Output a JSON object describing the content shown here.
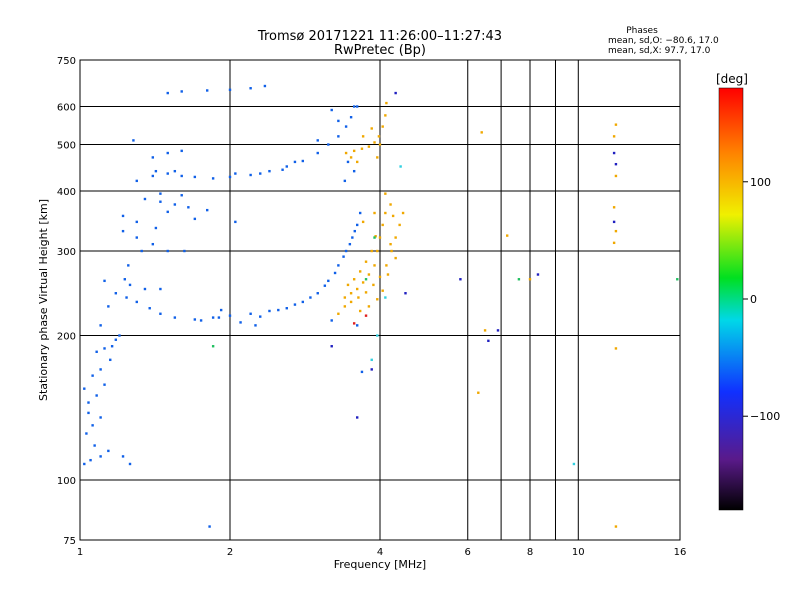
{
  "chart_data": {
    "type": "scatter",
    "title": "Tromsø 20171221 11:26:00–11:27:43",
    "subtitle": "RwPretec (Bp)",
    "xlabel": "Frequency [MHz]",
    "ylabel": "Stationary phase Virtual Height [km]",
    "x_scale": "log",
    "y_scale": "log",
    "xlim": [
      1,
      16
    ],
    "ylim": [
      75,
      750
    ],
    "x_ticks": [
      1,
      2,
      4,
      6,
      8,
      10,
      16
    ],
    "x_tick_labels": [
      "1",
      "2",
      "4",
      "6",
      "8",
      "10",
      "16"
    ],
    "x_gridlines": [
      2,
      4,
      6,
      7,
      8,
      9,
      10,
      16
    ],
    "y_ticks": [
      75,
      100,
      200,
      300,
      400,
      500,
      600,
      750
    ],
    "y_tick_labels": [
      "75",
      "100",
      "200",
      "300",
      "400",
      "500",
      "600",
      "750"
    ],
    "y_gridlines": [
      100,
      200,
      300,
      400,
      500,
      600
    ],
    "grid": true,
    "stats": {
      "title": "Phases",
      "line_o": "mean, sd,O: −80.6, 17.0",
      "line_x": "mean, sd,X:  97.7, 17.0"
    },
    "colorbar": {
      "label": "[deg]",
      "range": [
        -180,
        180
      ],
      "ticks": [
        100,
        0,
        -100
      ],
      "tick_labels": [
        "100",
        "0",
        "−100"
      ]
    },
    "series": [
      {
        "mode": "O",
        "color": "#1060e8",
        "points": [
          [
            1.02,
            108
          ],
          [
            1.05,
            110
          ],
          [
            1.1,
            112
          ],
          [
            1.14,
            115
          ],
          [
            1.03,
            125
          ],
          [
            1.06,
            130
          ],
          [
            1.1,
            135
          ],
          [
            1.04,
            145
          ],
          [
            1.08,
            150
          ],
          [
            1.12,
            158
          ],
          [
            1.06,
            165
          ],
          [
            1.1,
            170
          ],
          [
            1.15,
            178
          ],
          [
            1.12,
            188
          ],
          [
            1.18,
            196
          ],
          [
            1.2,
            200
          ],
          [
            1.1,
            210
          ],
          [
            1.14,
            230
          ],
          [
            1.18,
            245
          ],
          [
            1.24,
            240
          ],
          [
            1.3,
            235
          ],
          [
            1.38,
            228
          ],
          [
            1.45,
            222
          ],
          [
            1.55,
            218
          ],
          [
            1.7,
            216
          ],
          [
            1.85,
            218
          ],
          [
            2.0,
            220
          ],
          [
            2.2,
            222
          ],
          [
            2.4,
            225
          ],
          [
            2.6,
            228
          ],
          [
            2.8,
            235
          ],
          [
            3.0,
            245
          ],
          [
            3.15,
            260
          ],
          [
            3.3,
            280
          ],
          [
            3.42,
            300
          ],
          [
            3.52,
            320
          ],
          [
            3.6,
            340
          ],
          [
            3.65,
            360
          ],
          [
            1.22,
            330
          ],
          [
            1.3,
            320
          ],
          [
            1.4,
            310
          ],
          [
            1.5,
            300
          ],
          [
            1.22,
            355
          ],
          [
            1.3,
            345
          ],
          [
            1.42,
            335
          ],
          [
            1.35,
            385
          ],
          [
            1.45,
            380
          ],
          [
            1.55,
            375
          ],
          [
            1.65,
            370
          ],
          [
            1.8,
            365
          ],
          [
            1.3,
            420
          ],
          [
            1.4,
            430
          ],
          [
            1.5,
            435
          ],
          [
            1.6,
            430
          ],
          [
            1.7,
            428
          ],
          [
            1.85,
            425
          ],
          [
            2.0,
            428
          ],
          [
            2.2,
            432
          ],
          [
            2.4,
            440
          ],
          [
            2.6,
            450
          ],
          [
            2.8,
            462
          ],
          [
            3.0,
            480
          ],
          [
            3.15,
            500
          ],
          [
            3.3,
            520
          ],
          [
            3.42,
            545
          ],
          [
            3.5,
            570
          ],
          [
            3.55,
            600
          ],
          [
            1.4,
            470
          ],
          [
            1.5,
            480
          ],
          [
            1.6,
            485
          ],
          [
            1.28,
            510
          ],
          [
            1.5,
            640
          ],
          [
            1.6,
            645
          ],
          [
            1.8,
            648
          ],
          [
            2.0,
            650
          ],
          [
            2.2,
            655
          ],
          [
            2.35,
            662
          ],
          [
            3.3,
            560
          ],
          [
            3.6,
            600
          ],
          [
            3.2,
            590
          ],
          [
            3.0,
            510
          ],
          [
            2.7,
            460
          ],
          [
            1.35,
            250
          ],
          [
            1.45,
            250
          ],
          [
            1.25,
            280
          ],
          [
            1.33,
            300
          ],
          [
            1.12,
            260
          ],
          [
            1.75,
            215
          ],
          [
            1.9,
            218
          ],
          [
            2.1,
            213
          ],
          [
            2.3,
            219
          ],
          [
            2.5,
            226
          ],
          [
            2.7,
            232
          ],
          [
            2.9,
            240
          ],
          [
            3.1,
            254
          ],
          [
            3.25,
            270
          ],
          [
            3.38,
            292
          ],
          [
            3.48,
            310
          ],
          [
            3.56,
            330
          ],
          [
            1.16,
            190
          ],
          [
            1.08,
            185
          ],
          [
            1.02,
            155
          ],
          [
            1.04,
            138
          ],
          [
            1.07,
            118
          ],
          [
            1.22,
            112
          ],
          [
            1.26,
            108
          ],
          [
            1.82,
            80
          ],
          [
            3.4,
            420
          ],
          [
            3.55,
            440
          ],
          [
            3.45,
            460
          ],
          [
            2.55,
            443
          ],
          [
            2.3,
            435
          ],
          [
            1.26,
            255
          ],
          [
            1.23,
            262
          ],
          [
            1.42,
            440
          ],
          [
            1.55,
            440
          ],
          [
            2.05,
            435
          ],
          [
            1.92,
            226
          ],
          [
            2.25,
            210
          ],
          [
            2.05,
            345
          ],
          [
            1.62,
            300
          ],
          [
            1.45,
            395
          ],
          [
            1.6,
            392
          ],
          [
            1.5,
            362
          ],
          [
            1.7,
            350
          ],
          [
            3.2,
            215
          ],
          [
            3.6,
            210
          ],
          [
            3.68,
            168
          ]
        ]
      },
      {
        "mode": "X",
        "color": "#f0a800",
        "points": [
          [
            3.4,
            240
          ],
          [
            3.5,
            245
          ],
          [
            3.6,
            250
          ],
          [
            3.7,
            258
          ],
          [
            3.8,
            268
          ],
          [
            3.9,
            280
          ],
          [
            3.95,
            300
          ],
          [
            4.0,
            320
          ],
          [
            4.05,
            340
          ],
          [
            4.1,
            360
          ],
          [
            3.45,
            255
          ],
          [
            3.55,
            262
          ],
          [
            3.65,
            272
          ],
          [
            3.75,
            285
          ],
          [
            3.85,
            300
          ],
          [
            3.92,
            322
          ],
          [
            3.5,
            235
          ],
          [
            3.62,
            240
          ],
          [
            3.75,
            246
          ],
          [
            3.88,
            255
          ],
          [
            4.0,
            265
          ],
          [
            4.12,
            280
          ],
          [
            4.22,
            300
          ],
          [
            4.3,
            320
          ],
          [
            4.38,
            340
          ],
          [
            4.45,
            360
          ],
          [
            3.8,
            230
          ],
          [
            3.95,
            238
          ],
          [
            4.05,
            248
          ],
          [
            3.42,
            480
          ],
          [
            3.55,
            485
          ],
          [
            3.68,
            490
          ],
          [
            3.8,
            495
          ],
          [
            3.9,
            505
          ],
          [
            3.98,
            520
          ],
          [
            4.05,
            545
          ],
          [
            4.1,
            575
          ],
          [
            4.12,
            610
          ],
          [
            3.85,
            540
          ],
          [
            3.7,
            520
          ],
          [
            3.95,
            470
          ],
          [
            4.0,
            500
          ],
          [
            3.6,
            460
          ],
          [
            3.5,
            470
          ],
          [
            4.1,
            395
          ],
          [
            4.2,
            375
          ],
          [
            3.9,
            360
          ],
          [
            3.7,
            345
          ],
          [
            4.2,
            310
          ],
          [
            4.3,
            290
          ],
          [
            4.15,
            268
          ],
          [
            3.65,
            225
          ],
          [
            6.4,
            530
          ],
          [
            11.9,
            550
          ],
          [
            11.8,
            520
          ],
          [
            11.9,
            430
          ],
          [
            11.8,
            370
          ],
          [
            11.9,
            330
          ],
          [
            11.8,
            312
          ],
          [
            11.9,
            188
          ],
          [
            11.9,
            80
          ],
          [
            7.2,
            323
          ],
          [
            6.5,
            205
          ],
          [
            6.3,
            152
          ],
          [
            8.0,
            262
          ],
          [
            3.4,
            230
          ],
          [
            3.3,
            222
          ],
          [
            4.25,
            355
          ]
        ]
      },
      {
        "mode": "O-outliers",
        "color": "#2020c0",
        "points": [
          [
            4.3,
            640
          ],
          [
            8.3,
            268
          ],
          [
            11.8,
            480
          ],
          [
            11.9,
            455
          ],
          [
            11.8,
            345
          ],
          [
            6.9,
            205
          ],
          [
            6.6,
            195
          ],
          [
            5.8,
            262
          ],
          [
            3.85,
            170
          ],
          [
            4.5,
            245
          ],
          [
            3.6,
            135
          ],
          [
            3.2,
            190
          ]
        ]
      },
      {
        "mode": "misc",
        "color": "#20c060",
        "points": [
          [
            1.85,
            190
          ],
          [
            7.6,
            262
          ],
          [
            15.8,
            262
          ],
          [
            3.9,
            320
          ],
          [
            3.75,
            262
          ]
        ]
      },
      {
        "mode": "misc",
        "color": "#e02020",
        "points": [
          [
            3.75,
            220
          ],
          [
            3.55,
            212
          ]
        ]
      },
      {
        "mode": "misc",
        "color": "#30d0e0",
        "points": [
          [
            9.8,
            108
          ],
          [
            4.4,
            450
          ],
          [
            3.85,
            178
          ],
          [
            3.95,
            200
          ],
          [
            4.1,
            240
          ]
        ]
      }
    ]
  }
}
